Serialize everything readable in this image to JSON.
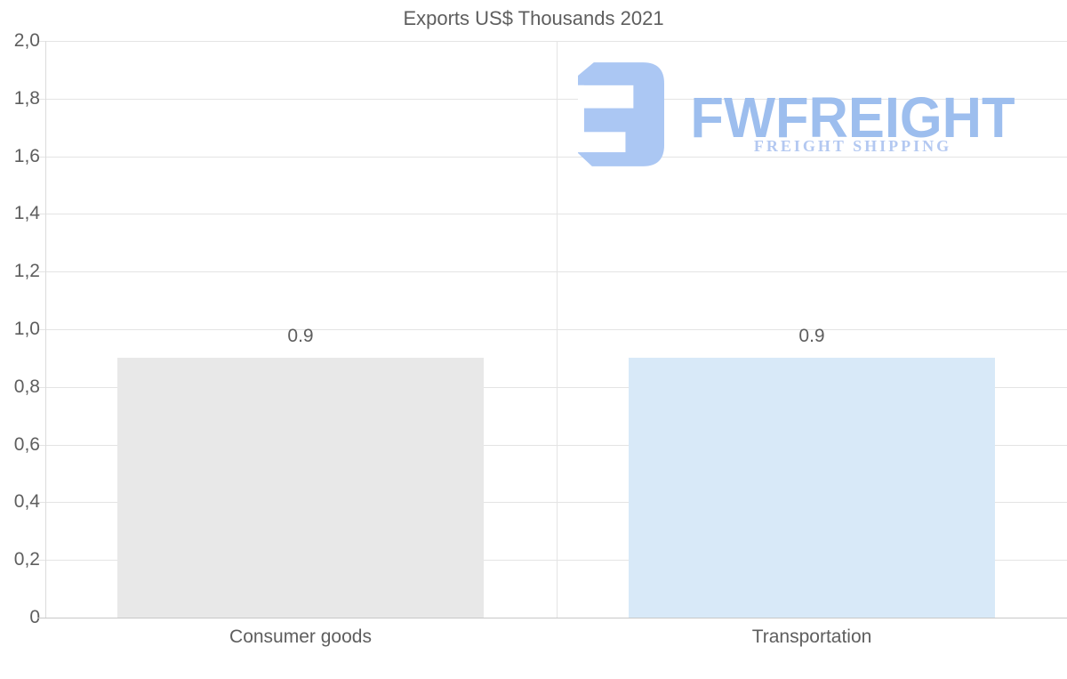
{
  "title": "Exports US$ Thousands 2021",
  "logo": {
    "wordmark": "FWFREIGHT",
    "tagline": "FREIGHT SHIPPING",
    "mark_color": "#abc7f3",
    "wordmark_color": "#9dbeee",
    "tagline_color": "#b3c8f1"
  },
  "colors": {
    "text": "#5e5e5e",
    "gridline": "#e4e4e4",
    "baseline": "#c8c8c8",
    "axis_line": "#dcdcdc"
  },
  "chart_data": {
    "type": "bar",
    "title": "Exports US$ Thousands 2021",
    "categories": [
      "Consumer goods",
      "Transportation"
    ],
    "values": [
      0.9,
      0.9
    ],
    "value_labels": [
      "0.9",
      "0.9"
    ],
    "bar_colors": [
      "#e8e8e8",
      "#d8e9f8"
    ],
    "xlabel": "",
    "ylabel": "",
    "ylim": [
      0,
      2.0
    ],
    "ytick_values": [
      2.0,
      1.8,
      1.6,
      1.4,
      1.2,
      1.0,
      0.8,
      0.6,
      0.4,
      0.2,
      0
    ],
    "ytick_labels": [
      "2,0",
      "1,8",
      "1,6",
      "1,4",
      "1,2",
      "1,0",
      "0,8",
      "0,6",
      "0,4",
      "0,2",
      "0"
    ],
    "decimal_separator_axis": ",",
    "grid": true,
    "legend_position": "none"
  }
}
